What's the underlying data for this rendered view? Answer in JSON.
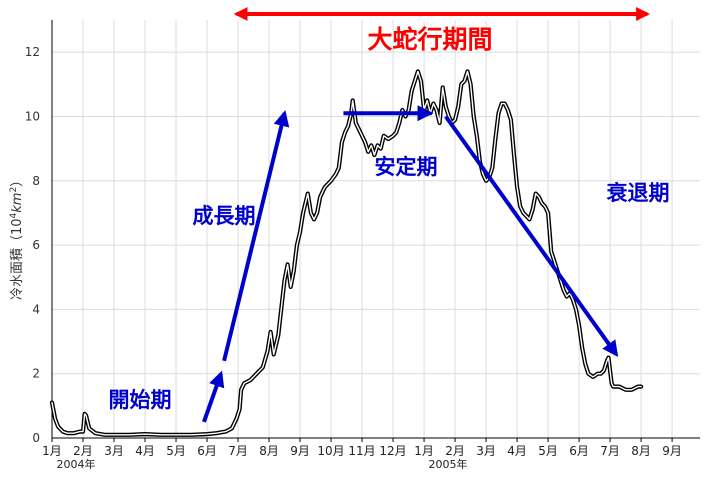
{
  "chart_data": {
    "type": "line",
    "ylabel_prefix": "冷水面積（10",
    "ylabel_sup": "4",
    "ylabel_mid": "km",
    "ylabel_sup2": "2",
    "ylabel_suffix": "）",
    "ylim": [
      0,
      13
    ],
    "yticks": [
      "0",
      "2",
      "4",
      "6",
      "8",
      "10",
      "12"
    ],
    "x_month_labels": [
      "1月",
      "2月",
      "3月",
      "4月",
      "5月",
      "6月",
      "7月",
      "8月",
      "9月",
      "10月",
      "11月",
      "12月",
      "1月",
      "2月",
      "3月",
      "4月",
      "5月",
      "6月",
      "7月",
      "8月",
      "9月"
    ],
    "year_labels": [
      {
        "text": "2004年",
        "month_index": 0
      },
      {
        "text": "2005年",
        "month_index": 12
      }
    ],
    "xlim_months": [
      0,
      20.9
    ],
    "grid": true,
    "series": [
      {
        "color": "#000000",
        "points": [
          [
            0,
            1.1
          ],
          [
            0.1,
            0.6
          ],
          [
            0.2,
            0.35
          ],
          [
            0.35,
            0.2
          ],
          [
            0.5,
            0.15
          ],
          [
            0.7,
            0.15
          ],
          [
            0.9,
            0.2
          ],
          [
            1.0,
            0.2
          ],
          [
            1.05,
            0.75
          ],
          [
            1.1,
            0.7
          ],
          [
            1.2,
            0.3
          ],
          [
            1.4,
            0.15
          ],
          [
            1.7,
            0.1
          ],
          [
            2.0,
            0.1
          ],
          [
            2.5,
            0.1
          ],
          [
            3.0,
            0.12
          ],
          [
            3.5,
            0.1
          ],
          [
            4.0,
            0.1
          ],
          [
            4.5,
            0.1
          ],
          [
            5.0,
            0.12
          ],
          [
            5.3,
            0.15
          ],
          [
            5.6,
            0.2
          ],
          [
            5.8,
            0.3
          ],
          [
            5.95,
            0.6
          ],
          [
            6.05,
            0.9
          ],
          [
            6.1,
            1.5
          ],
          [
            6.2,
            1.7
          ],
          [
            6.4,
            1.8
          ],
          [
            6.6,
            2.0
          ],
          [
            6.8,
            2.2
          ],
          [
            6.95,
            2.7
          ],
          [
            7.05,
            3.3
          ],
          [
            7.15,
            2.6
          ],
          [
            7.3,
            3.2
          ],
          [
            7.5,
            4.9
          ],
          [
            7.6,
            5.4
          ],
          [
            7.7,
            4.7
          ],
          [
            7.8,
            5.2
          ],
          [
            7.9,
            6.0
          ],
          [
            8.0,
            6.4
          ],
          [
            8.1,
            7.0
          ],
          [
            8.2,
            7.4
          ],
          [
            8.25,
            7.6
          ],
          [
            8.35,
            7.0
          ],
          [
            8.45,
            6.8
          ],
          [
            8.55,
            7.0
          ],
          [
            8.65,
            7.5
          ],
          [
            8.8,
            7.8
          ],
          [
            9.0,
            8.0
          ],
          [
            9.15,
            8.2
          ],
          [
            9.25,
            8.4
          ],
          [
            9.35,
            9.2
          ],
          [
            9.45,
            9.5
          ],
          [
            9.55,
            9.7
          ],
          [
            9.65,
            10.1
          ],
          [
            9.7,
            10.5
          ],
          [
            9.8,
            9.8
          ],
          [
            9.9,
            9.6
          ],
          [
            10.0,
            9.4
          ],
          [
            10.1,
            9.2
          ],
          [
            10.2,
            8.9
          ],
          [
            10.3,
            9.1
          ],
          [
            10.4,
            8.8
          ],
          [
            10.5,
            9.1
          ],
          [
            10.6,
            9.0
          ],
          [
            10.7,
            9.4
          ],
          [
            10.85,
            9.3
          ],
          [
            11.0,
            9.4
          ],
          [
            11.1,
            9.5
          ],
          [
            11.2,
            9.8
          ],
          [
            11.3,
            10.2
          ],
          [
            11.4,
            10.0
          ],
          [
            11.5,
            10.2
          ],
          [
            11.6,
            10.8
          ],
          [
            11.7,
            11.1
          ],
          [
            11.8,
            11.4
          ],
          [
            11.9,
            11.1
          ],
          [
            12.0,
            10.2
          ],
          [
            12.1,
            10.5
          ],
          [
            12.2,
            10.1
          ],
          [
            12.3,
            10.4
          ],
          [
            12.4,
            10.2
          ],
          [
            12.5,
            9.8
          ],
          [
            12.6,
            10.9
          ],
          [
            12.7,
            10.3
          ],
          [
            12.8,
            10.0
          ],
          [
            12.9,
            9.8
          ],
          [
            13.0,
            9.9
          ],
          [
            13.1,
            10.3
          ],
          [
            13.2,
            11.0
          ],
          [
            13.3,
            11.1
          ],
          [
            13.4,
            11.4
          ],
          [
            13.5,
            11.0
          ],
          [
            13.6,
            10.0
          ],
          [
            13.7,
            9.4
          ],
          [
            13.8,
            8.6
          ],
          [
            13.9,
            8.2
          ],
          [
            14.0,
            8.0
          ],
          [
            14.1,
            8.1
          ],
          [
            14.2,
            8.4
          ],
          [
            14.3,
            9.3
          ],
          [
            14.4,
            10.1
          ],
          [
            14.5,
            10.4
          ],
          [
            14.6,
            10.4
          ],
          [
            14.7,
            10.2
          ],
          [
            14.8,
            9.9
          ],
          [
            14.9,
            8.8
          ],
          [
            15.0,
            7.8
          ],
          [
            15.1,
            7.2
          ],
          [
            15.2,
            7.0
          ],
          [
            15.3,
            6.9
          ],
          [
            15.4,
            6.8
          ],
          [
            15.5,
            7.1
          ],
          [
            15.6,
            7.6
          ],
          [
            15.7,
            7.5
          ],
          [
            15.8,
            7.3
          ],
          [
            15.9,
            7.2
          ],
          [
            16.0,
            7.0
          ],
          [
            16.1,
            5.8
          ],
          [
            16.2,
            5.5
          ],
          [
            16.3,
            5.2
          ],
          [
            16.4,
            4.9
          ],
          [
            16.5,
            4.6
          ],
          [
            16.6,
            4.4
          ],
          [
            16.7,
            4.5
          ],
          [
            16.8,
            4.3
          ],
          [
            16.9,
            4.0
          ],
          [
            17.0,
            3.5
          ],
          [
            17.1,
            2.8
          ],
          [
            17.2,
            2.3
          ],
          [
            17.3,
            2.0
          ],
          [
            17.45,
            1.9
          ],
          [
            17.6,
            2.0
          ],
          [
            17.7,
            2.0
          ],
          [
            17.8,
            2.1
          ],
          [
            17.9,
            2.4
          ],
          [
            17.95,
            2.5
          ],
          [
            18.05,
            1.7
          ],
          [
            18.1,
            1.6
          ],
          [
            18.3,
            1.6
          ],
          [
            18.5,
            1.5
          ],
          [
            18.7,
            1.5
          ],
          [
            18.9,
            1.6
          ],
          [
            19.0,
            1.6
          ]
        ]
      }
    ],
    "annotations": {
      "period_label": "大蛇行期間",
      "stage_start": "開始期",
      "stage_growth": "成長期",
      "stage_stable": "安定期",
      "stage_decline": "衰退期"
    },
    "annotation_arrows": [
      {
        "kind": "period",
        "from": [
          5.95,
          13.0
        ],
        "to": [
          19.2,
          13.0
        ],
        "color": "#ff0000",
        "double_headed": true
      },
      {
        "kind": "stage",
        "from": [
          4.9,
          0.5
        ],
        "to": [
          5.45,
          2.0
        ],
        "color": "#0000cc"
      },
      {
        "kind": "stage",
        "from": [
          5.55,
          2.4
        ],
        "to": [
          7.5,
          10.1
        ],
        "color": "#0000cc"
      },
      {
        "kind": "stage",
        "from": [
          9.4,
          10.1
        ],
        "to": [
          12.2,
          10.1
        ],
        "color": "#0000cc"
      },
      {
        "kind": "stage",
        "from": [
          12.7,
          10.0
        ],
        "to": [
          18.2,
          2.6
        ],
        "color": "#0000cc"
      }
    ],
    "colors": {
      "red": "#ff0000",
      "blue": "#0000cc",
      "grid": "#dcdcdc",
      "axis": "#000000"
    }
  }
}
